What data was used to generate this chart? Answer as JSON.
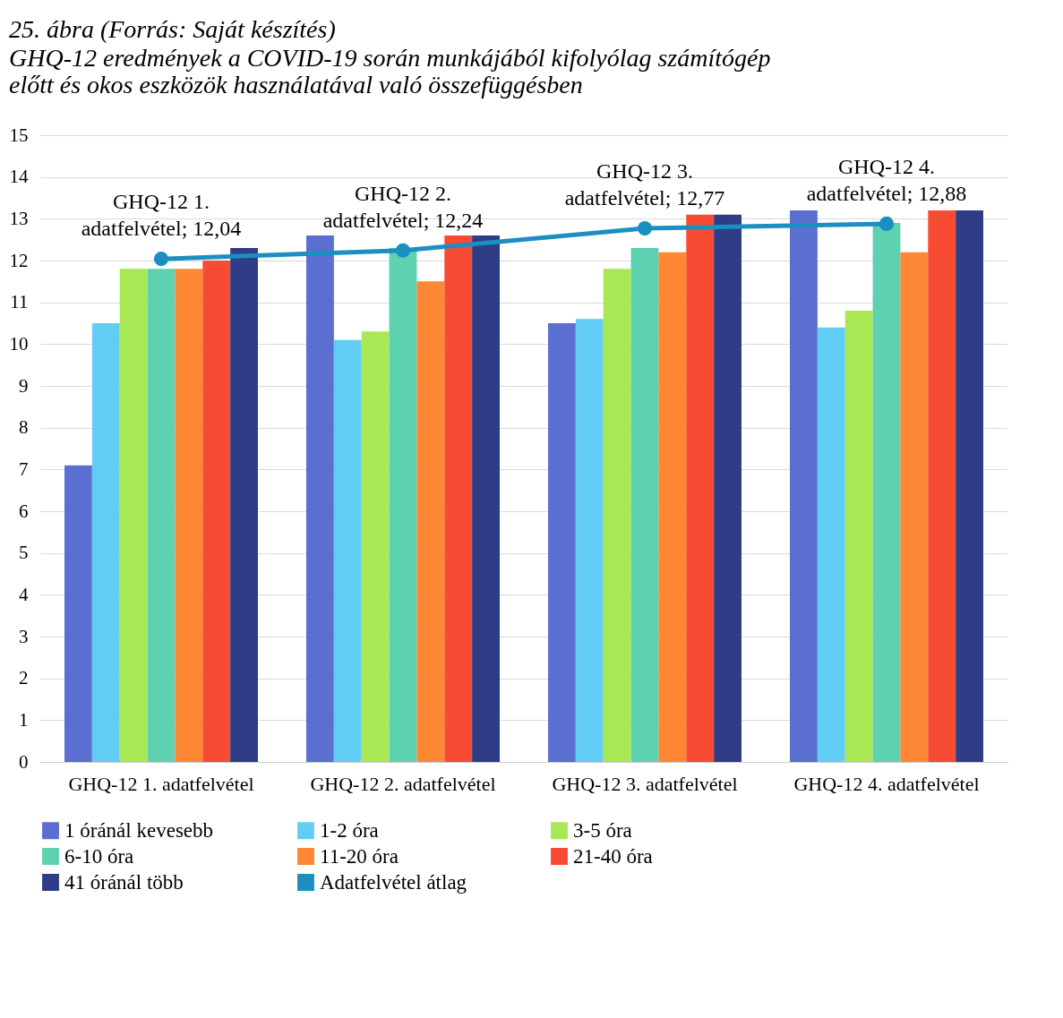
{
  "chart_data": {
    "type": "bar",
    "title": "25. ábra (Forrás: Saját készítés)",
    "subtitle": "GHQ-12 eredmények a COVID-19 során munkájából kifolyólag számítógép előtt és okos eszközök használatával való összefüggésben",
    "categories": [
      "GHQ-12  1. adatfelvétel",
      "GHQ-12  2. adatfelvétel",
      "GHQ-12  3. adatfelvétel",
      "GHQ-12  4. adatfelvétel"
    ],
    "series": [
      {
        "name": "1 óránál kevesebb",
        "color": "#5b6fd0",
        "values": [
          7.1,
          12.6,
          10.5,
          13.2
        ]
      },
      {
        "name": "1-2 óra",
        "color": "#62cdf4",
        "values": [
          10.5,
          10.1,
          10.6,
          10.4
        ]
      },
      {
        "name": "3-5 óra",
        "color": "#a8e855",
        "values": [
          11.8,
          10.3,
          11.8,
          10.8
        ]
      },
      {
        "name": "6-10 óra",
        "color": "#5dd1b0",
        "values": [
          11.8,
          12.3,
          12.3,
          12.9
        ]
      },
      {
        "name": "11-20 óra",
        "color": "#fd8735",
        "values": [
          11.8,
          11.5,
          12.2,
          12.2
        ]
      },
      {
        "name": "21-40 óra",
        "color": "#f74b33",
        "values": [
          12.0,
          12.6,
          13.1,
          13.2
        ]
      },
      {
        "name": "41 óránál több",
        "color": "#2e3d85",
        "values": [
          12.3,
          12.6,
          13.1,
          13.2
        ]
      },
      {
        "name": "Adatfelvétel átlag",
        "type": "line",
        "color": "#1a8fc0",
        "marker": "circle",
        "values": [
          12.04,
          12.24,
          12.77,
          12.88
        ],
        "value_labels": [
          "GHQ-12  1. adatfelvétel; 12,04",
          "GHQ-12  2. adatfelvétel; 12,24",
          "GHQ-12  3. adatfelvétel; 12,77",
          "GHQ-12  4. adatfelvétel; 12,88"
        ]
      }
    ],
    "ylim": [
      0,
      15
    ],
    "yticks": [
      0,
      1,
      2,
      3,
      4,
      5,
      6,
      7,
      8,
      9,
      10,
      11,
      12,
      13,
      14,
      15
    ],
    "grid": "y",
    "legend": "bottom"
  }
}
